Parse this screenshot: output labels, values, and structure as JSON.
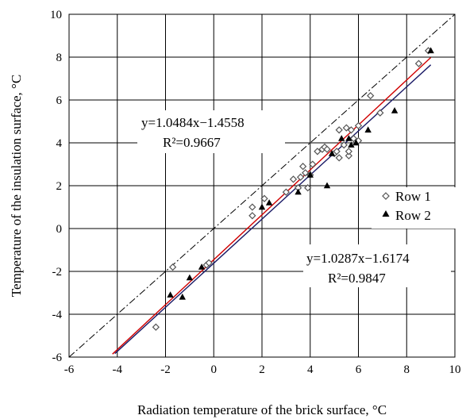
{
  "chart_data": {
    "type": "scatter",
    "title": "",
    "xlabel": "Radiation temperature of the brick surface, °C",
    "ylabel": "Temperature of the insulation surface, °C",
    "xlim": [
      -6,
      10
    ],
    "ylim": [
      -6,
      10
    ],
    "xticks": [
      -6,
      -4,
      -2,
      0,
      2,
      4,
      6,
      8,
      10
    ],
    "yticks": [
      -6,
      -4,
      -2,
      0,
      2,
      4,
      6,
      8,
      10
    ],
    "x_tick_labels": [
      "-6",
      "-4",
      "-2",
      "0",
      "2",
      "4",
      "6",
      "8",
      "10"
    ],
    "y_tick_labels": [
      "-6",
      "-4",
      "-2",
      "0",
      "2",
      "4",
      "6",
      "8",
      "10"
    ],
    "grid": true,
    "legend_position": "right",
    "series": [
      {
        "name": "Row 1",
        "marker": "open-diamond",
        "points": [
          [
            -2.4,
            -4.6
          ],
          [
            -1.7,
            -1.8
          ],
          [
            -0.3,
            -1.7
          ],
          [
            -0.2,
            -1.6
          ],
          [
            1.6,
            0.6
          ],
          [
            1.6,
            1.0
          ],
          [
            2.1,
            1.4
          ],
          [
            3.0,
            1.7
          ],
          [
            3.3,
            2.3
          ],
          [
            3.5,
            1.9
          ],
          [
            3.6,
            2.4
          ],
          [
            3.7,
            2.9
          ],
          [
            3.8,
            2.6
          ],
          [
            3.9,
            1.9
          ],
          [
            4.0,
            2.5
          ],
          [
            4.1,
            3.0
          ],
          [
            4.3,
            3.6
          ],
          [
            4.5,
            3.7
          ],
          [
            4.6,
            3.8
          ],
          [
            4.7,
            3.7
          ],
          [
            5.0,
            3.5
          ],
          [
            5.1,
            3.6
          ],
          [
            5.2,
            3.3
          ],
          [
            5.2,
            4.6
          ],
          [
            5.4,
            3.9
          ],
          [
            5.5,
            4.7
          ],
          [
            5.6,
            3.4
          ],
          [
            5.6,
            3.6
          ],
          [
            5.7,
            4.6
          ],
          [
            5.8,
            4.2
          ],
          [
            6.0,
            4.1
          ],
          [
            6.0,
            4.8
          ],
          [
            6.5,
            6.2
          ],
          [
            6.9,
            5.4
          ],
          [
            8.5,
            7.7
          ],
          [
            8.9,
            8.3
          ]
        ]
      },
      {
        "name": "Row 2",
        "marker": "filled-triangle",
        "points": [
          [
            -1.8,
            -3.1
          ],
          [
            -1.3,
            -3.2
          ],
          [
            -1.0,
            -2.3
          ],
          [
            -0.5,
            -1.8
          ],
          [
            2.0,
            1.0
          ],
          [
            2.3,
            1.2
          ],
          [
            3.5,
            1.7
          ],
          [
            4.0,
            2.5
          ],
          [
            4.7,
            2.0
          ],
          [
            4.9,
            3.5
          ],
          [
            5.3,
            4.2
          ],
          [
            5.6,
            4.2
          ],
          [
            5.7,
            3.9
          ],
          [
            5.9,
            4.0
          ],
          [
            6.4,
            4.6
          ],
          [
            7.5,
            5.5
          ],
          [
            9.0,
            8.3
          ]
        ]
      }
    ],
    "fit_lines": [
      {
        "slope": 1.0484,
        "intercept": -1.4558,
        "color": "#d00000",
        "x_range": [
          -4.2,
          9.0
        ]
      },
      {
        "slope": 1.0287,
        "intercept": -1.6174,
        "color": "#1a1a66",
        "x_range": [
          -4.1,
          9.0
        ]
      }
    ],
    "reference_line": {
      "slope": 1,
      "intercept": 0,
      "style": "dash-dot",
      "color": "#000000"
    },
    "annotations": {
      "eq1": "y=1.0484x−1.4558",
      "r2_1": "R²=0.9667",
      "eq2": "y=1.0287x−1.6174",
      "r2_2": "R²=0.9847"
    }
  }
}
